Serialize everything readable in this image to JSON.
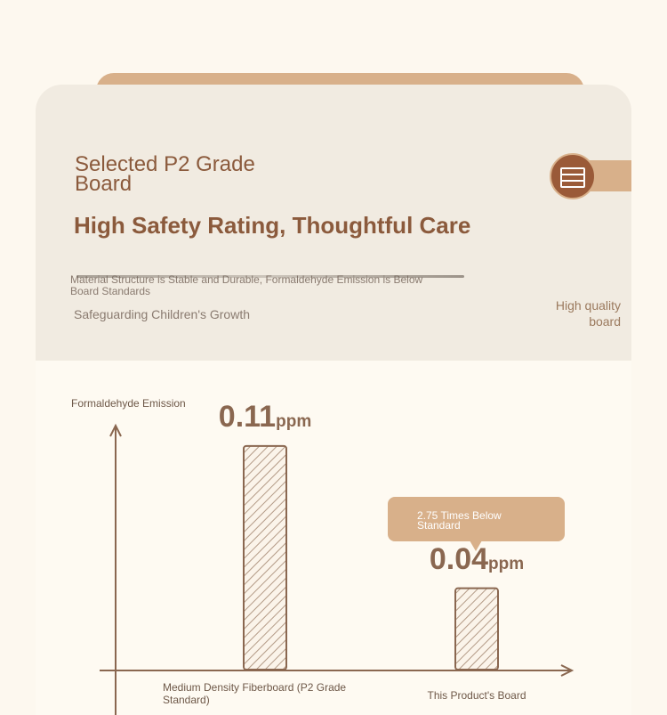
{
  "header": {
    "title": "Selected P2 Grade Board",
    "headline": "High Safety Rating, Thoughtful Care",
    "description": "Material Structure is Stable and Durable, Formaldehyde Emission is Below Board Standards",
    "tagline": "Safeguarding Children's Growth",
    "badge": "High quality board"
  },
  "chart": {
    "type": "bar",
    "y_label": "Formaldehyde Emission",
    "categories": [
      "Medium Density Fiberboard (P2 Grade Standard)",
      "This Product's Board"
    ],
    "values": [
      0.11,
      0.04
    ],
    "units": [
      "ppm",
      "ppm"
    ],
    "callout": "2.75 Times Below Standard",
    "color": "#8a6750",
    "ylim": [
      0,
      0.12
    ]
  }
}
